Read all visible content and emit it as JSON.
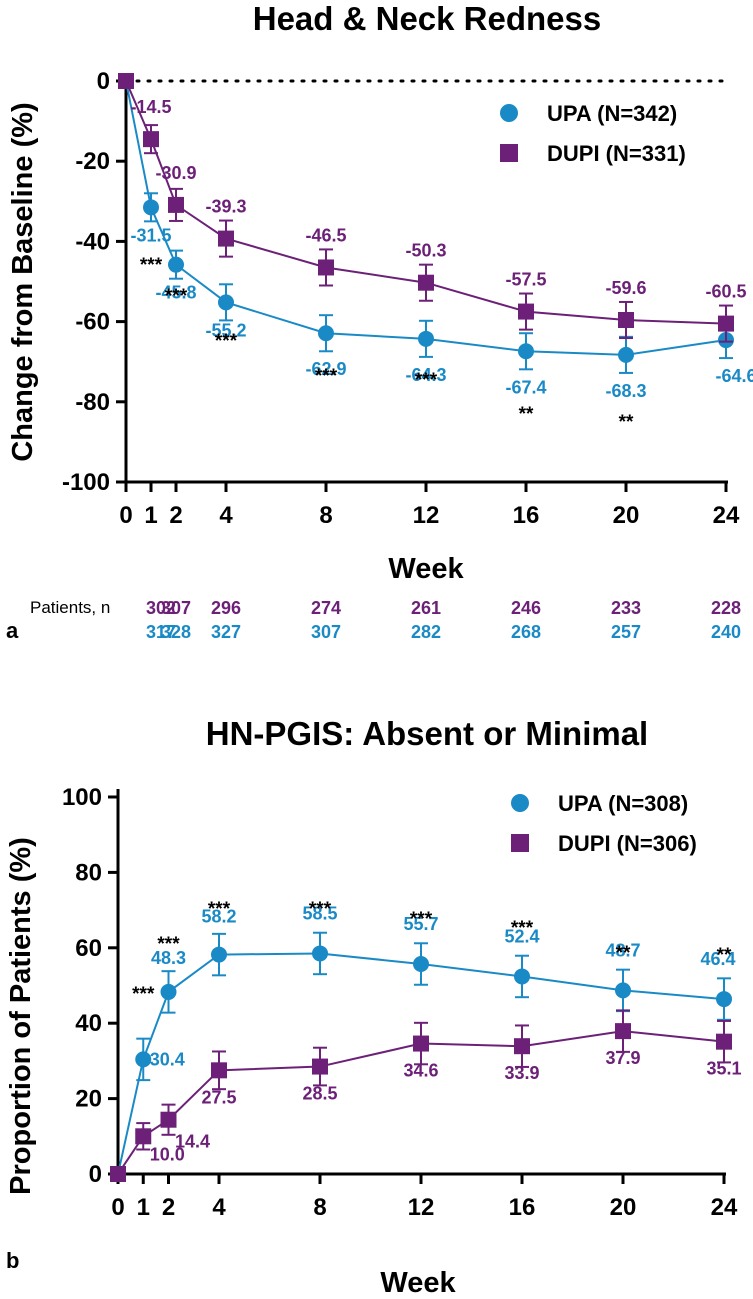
{
  "colors": {
    "upa": "#1a8ac6",
    "dupi": "#6c2077",
    "axis": "#000000"
  },
  "chart_data": [
    {
      "panel": "a",
      "type": "line",
      "title": "Head  & Neck Redness",
      "xlabel": "Week",
      "ylabel": "Change from Baseline (%)",
      "xlim": [
        0,
        24
      ],
      "ylim": [
        -100,
        0
      ],
      "xticks": [
        0,
        1,
        2,
        4,
        8,
        12,
        16,
        20,
        24
      ],
      "yticks": [
        0,
        -20,
        -40,
        -60,
        -80,
        -100
      ],
      "reference_line": 0,
      "legend_position": "top-right",
      "series": [
        {
          "key": "upa",
          "name": "UPA (N=342)",
          "marker": "circle",
          "x": [
            0,
            1,
            2,
            4,
            8,
            12,
            16,
            20,
            24
          ],
          "values": [
            0,
            -31.5,
            -45.8,
            -55.2,
            -62.9,
            -64.3,
            -67.4,
            -68.3,
            -64.6
          ],
          "errors": [
            0,
            3.5,
            3.5,
            4.5,
            4.5,
            4.5,
            4.5,
            4.5,
            4.5
          ],
          "labels": [
            "",
            "-31.5",
            "-45.8",
            "-55.2",
            "-62.9",
            "-64.3",
            "-67.4",
            "-68.3",
            "-64.6"
          ]
        },
        {
          "key": "dupi",
          "name": "DUPI (N=331)",
          "marker": "square",
          "x": [
            0,
            1,
            2,
            4,
            8,
            12,
            16,
            20,
            24
          ],
          "values": [
            0,
            -14.5,
            -30.9,
            -39.3,
            -46.5,
            -50.3,
            -57.5,
            -59.6,
            -60.5
          ],
          "errors": [
            0,
            3.5,
            4.0,
            4.5,
            4.5,
            4.5,
            4.5,
            4.5,
            4.5
          ],
          "labels": [
            "",
            "-14.5",
            "-30.9",
            "-39.3",
            "-46.5",
            "-50.3",
            "-57.5",
            "-59.6",
            "-60.5"
          ]
        }
      ],
      "significance": [
        "",
        "***",
        "***",
        "***",
        "***",
        "***",
        "**",
        "**",
        ""
      ],
      "patients_label": "Patients, n",
      "patients": {
        "dupi": [
          "302",
          "307",
          "296",
          "274",
          "261",
          "246",
          "233",
          "228"
        ],
        "upa": [
          "317",
          "328",
          "327",
          "307",
          "282",
          "268",
          "257",
          "240"
        ],
        "weeks": [
          1,
          2,
          4,
          8,
          12,
          16,
          20,
          24
        ]
      }
    },
    {
      "panel": "b",
      "type": "line",
      "title": "HN-PGIS: Absent or Minimal",
      "xlabel": "Week",
      "ylabel": "Proportion of Patients (%)",
      "xlim": [
        0,
        24
      ],
      "ylim": [
        0,
        100
      ],
      "xticks": [
        0,
        1,
        2,
        4,
        8,
        12,
        16,
        20,
        24
      ],
      "yticks": [
        0,
        20,
        40,
        60,
        80,
        100
      ],
      "legend_position": "top-right",
      "series": [
        {
          "key": "upa",
          "name": "UPA (N=308)",
          "marker": "circle",
          "x": [
            0,
            1,
            2,
            4,
            8,
            12,
            16,
            20,
            24
          ],
          "values": [
            0,
            30.4,
            48.3,
            58.2,
            58.5,
            55.7,
            52.4,
            48.7,
            46.4
          ],
          "errors": [
            0,
            5.5,
            5.5,
            5.5,
            5.5,
            5.5,
            5.5,
            5.5,
            5.5
          ],
          "labels": [
            "",
            "30.4",
            "48.3",
            "58.2",
            "58.5",
            "55.7",
            "52.4",
            "48.7",
            "46.4"
          ]
        },
        {
          "key": "dupi",
          "name": "DUPI (N=306)",
          "marker": "square",
          "x": [
            0,
            1,
            2,
            4,
            8,
            12,
            16,
            20,
            24
          ],
          "values": [
            0,
            10.0,
            14.4,
            27.5,
            28.5,
            34.6,
            33.9,
            37.9,
            35.1
          ],
          "errors": [
            0,
            3.5,
            4.0,
            5.0,
            5.0,
            5.5,
            5.5,
            5.5,
            5.5
          ],
          "labels": [
            "",
            "10.0",
            "14.4",
            "27.5",
            "28.5",
            "34.6",
            "33.9",
            "37.9",
            "35.1"
          ]
        }
      ],
      "significance": [
        "",
        "***",
        "***",
        "***",
        "***",
        "***",
        "***",
        "**",
        "**"
      ]
    }
  ]
}
